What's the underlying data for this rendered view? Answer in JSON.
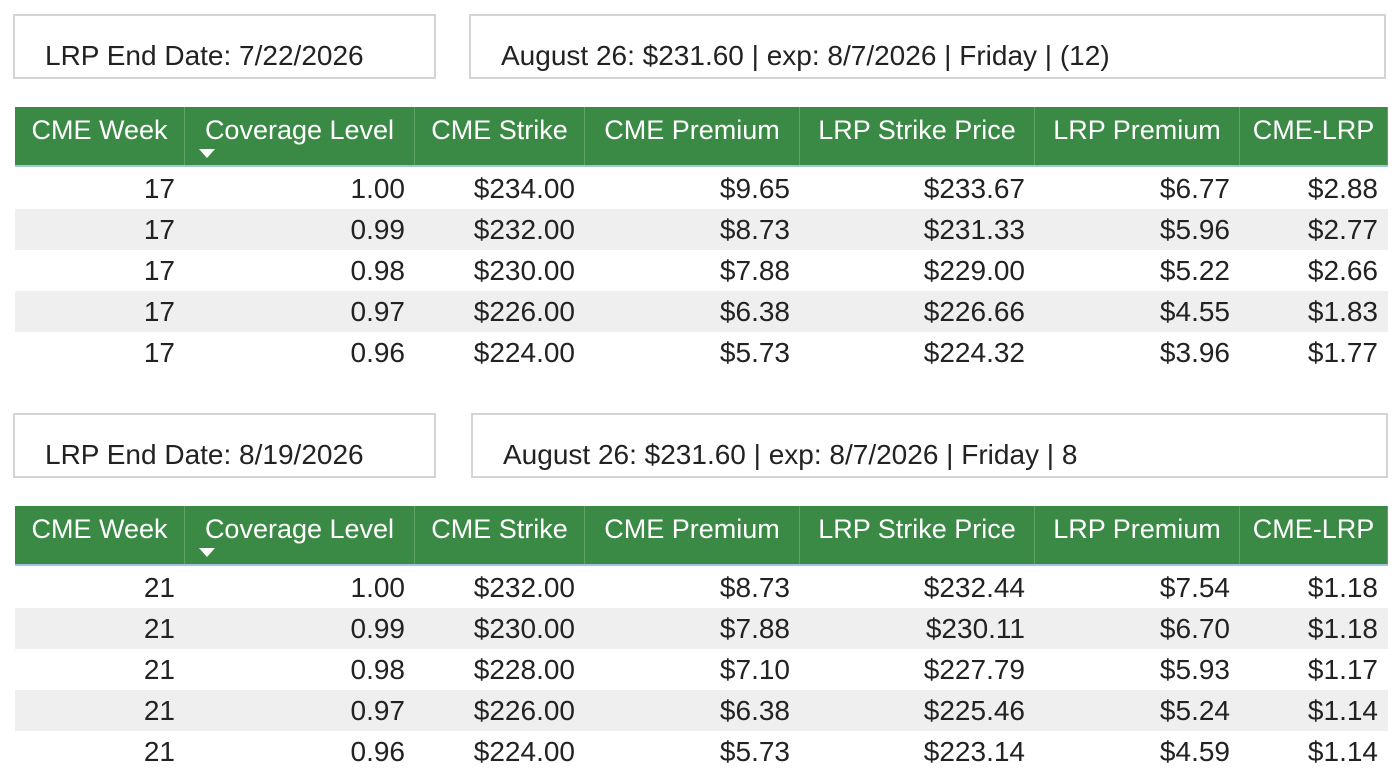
{
  "sections": [
    {
      "end_date": "LRP End Date: 7/22/2026",
      "info": "August 26: $231.60 | exp: 8/7/2026 | Friday | (12)",
      "table": {
        "headers": [
          "CME Week",
          "Coverage Level",
          "CME Strike",
          "CME Premium",
          "LRP Strike Price",
          "LRP Premium",
          "CME-LRP"
        ],
        "rows": [
          [
            "17",
            "1.00",
            "$234.00",
            "$9.65",
            "$233.67",
            "$6.77",
            "$2.88"
          ],
          [
            "17",
            "0.99",
            "$232.00",
            "$8.73",
            "$231.33",
            "$5.96",
            "$2.77"
          ],
          [
            "17",
            "0.98",
            "$230.00",
            "$7.88",
            "$229.00",
            "$5.22",
            "$2.66"
          ],
          [
            "17",
            "0.97",
            "$226.00",
            "$6.38",
            "$226.66",
            "$4.55",
            "$1.83"
          ],
          [
            "17",
            "0.96",
            "$224.00",
            "$5.73",
            "$224.32",
            "$3.96",
            "$1.77"
          ]
        ]
      }
    },
    {
      "end_date": "LRP End Date: 8/19/2026",
      "info": "August 26: $231.60 | exp: 8/7/2026 | Friday | 8",
      "table": {
        "headers": [
          "CME Week",
          "Coverage Level",
          "CME Strike",
          "CME Premium",
          "LRP Strike Price",
          "LRP Premium",
          "CME-LRP"
        ],
        "rows": [
          [
            "21",
            "1.00",
            "$232.00",
            "$8.73",
            "$232.44",
            "$7.54",
            "$1.18"
          ],
          [
            "21",
            "0.99",
            "$230.00",
            "$7.88",
            "$230.11",
            "$6.70",
            "$1.18"
          ],
          [
            "21",
            "0.98",
            "$228.00",
            "$7.10",
            "$227.79",
            "$5.93",
            "$1.17"
          ],
          [
            "21",
            "0.97",
            "$226.00",
            "$6.38",
            "$225.46",
            "$5.24",
            "$1.14"
          ],
          [
            "21",
            "0.96",
            "$224.00",
            "$5.73",
            "$223.14",
            "$4.59",
            "$1.14"
          ]
        ]
      }
    }
  ]
}
